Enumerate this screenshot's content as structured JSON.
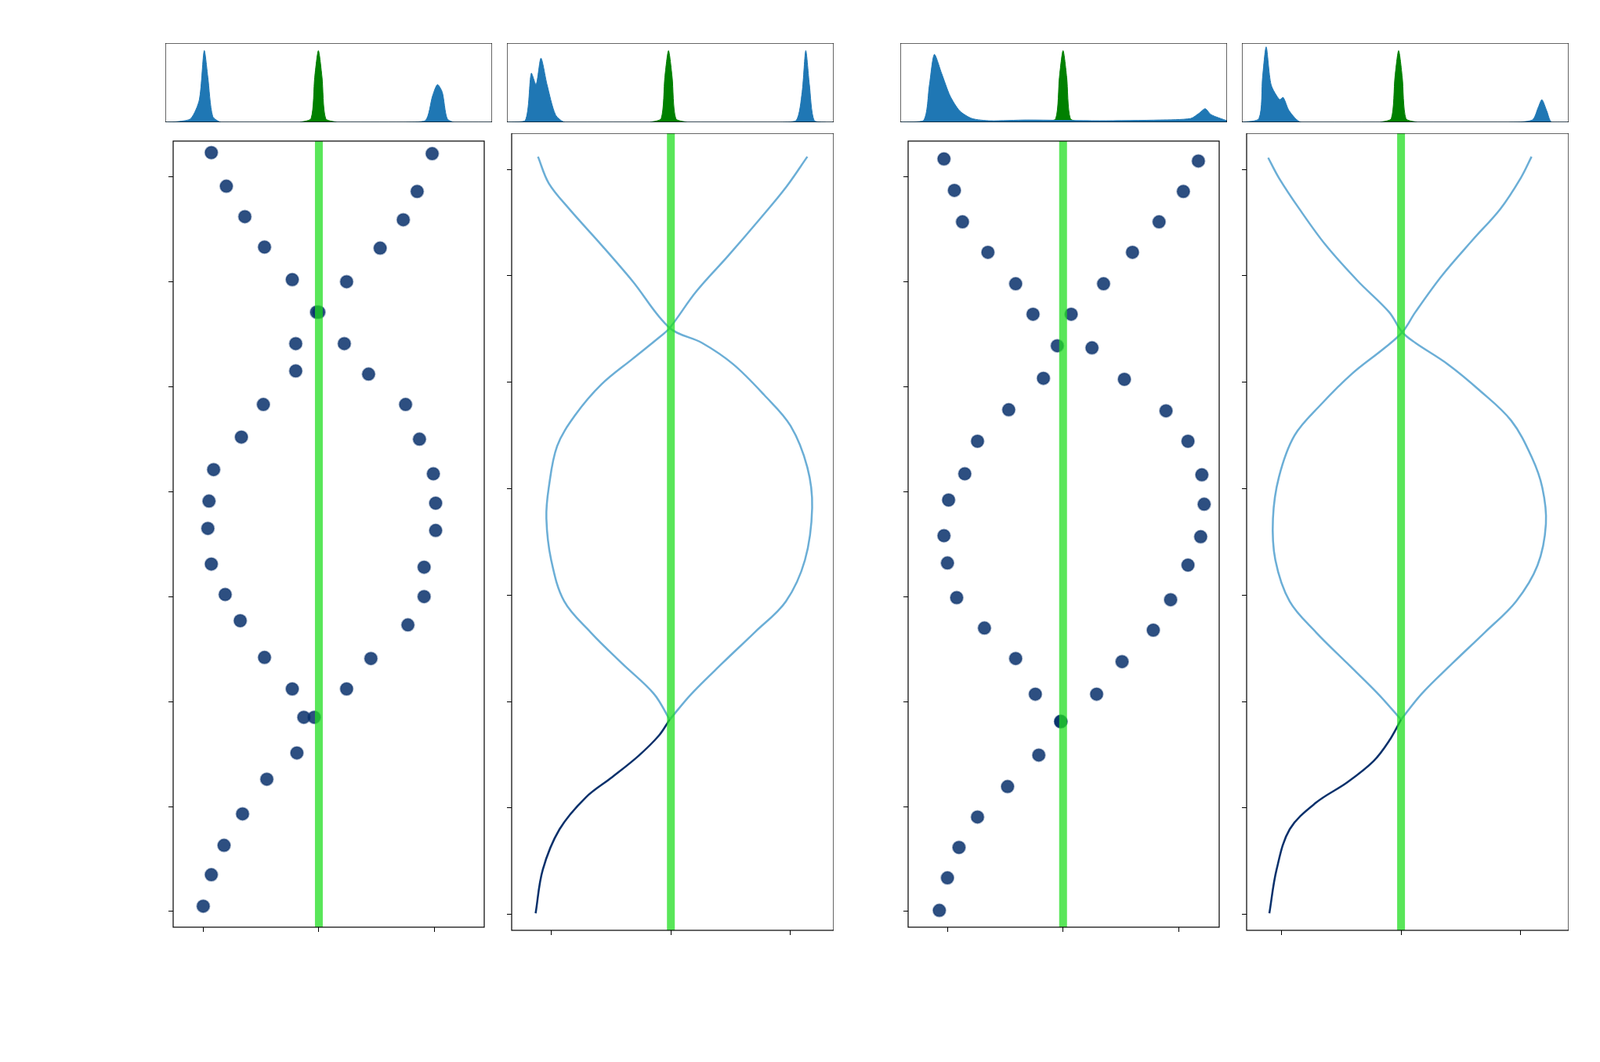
{
  "chart_data": [
    {
      "type": "area",
      "xlim": [
        -1.26,
        1.43
      ],
      "ylim": [
        0,
        1.05
      ],
      "tick_labels": false,
      "grid": false,
      "series": [
        {
          "color": "#1f77b4",
          "x": [
            -1.26,
            -1.15,
            -1.05,
            -0.98,
            -0.94,
            -0.91,
            -0.87,
            -0.8,
            -0.5,
            0.7,
            0.88,
            0.94,
            0.98,
            1.02,
            1.06,
            1.12,
            1.43
          ],
          "values": [
            0,
            0.01,
            0.05,
            0.3,
            0.95,
            0.6,
            0.08,
            0,
            0,
            0,
            0.02,
            0.35,
            0.5,
            0.4,
            0.05,
            0,
            0
          ]
        },
        {
          "color": "#008000",
          "x": [
            -0.15,
            -0.06,
            -0.03,
            0,
            0.03,
            0.06,
            0.15
          ],
          "values": [
            0,
            0.05,
            0.6,
            0.95,
            0.6,
            0.05,
            0
          ]
        }
      ]
    },
    {
      "type": "scatter",
      "xlim": [
        -1.26,
        1.43
      ],
      "xticks": [
        -1,
        0,
        1
      ],
      "ylim": [
        -0.15,
        7.34
      ],
      "yticks": [
        0,
        1,
        2,
        3,
        4,
        5,
        6,
        7
      ],
      "tick_labels": false,
      "grid": false,
      "series": [
        {
          "type": "line",
          "color": "#22dd22",
          "line_style": "solid",
          "x": [
            0,
            0
          ],
          "values": [
            -0.15,
            7.34
          ]
        },
        {
          "type": "scatter",
          "color": "#08306b",
          "marker": "circle",
          "x": [
            -0.93,
            -0.8,
            -0.64,
            -0.47,
            -0.23,
            -0.02,
            0.22,
            -0.2,
            -0.48,
            -0.67,
            -0.91,
            -0.95,
            -0.96,
            -0.93,
            -0.81,
            -0.68,
            -0.47,
            -0.23,
            -0.13,
            -0.19,
            -0.45,
            -0.66,
            -0.82,
            -0.93,
            -1.0
          ],
          "values": [
            7.23,
            6.91,
            6.62,
            6.33,
            6.02,
            5.71,
            5.41,
            5.15,
            4.83,
            4.52,
            4.21,
            3.91,
            3.65,
            3.31,
            3.02,
            2.77,
            2.42,
            2.12,
            1.85,
            1.51,
            1.26,
            0.93,
            0.63,
            0.35,
            0.05
          ]
        },
        {
          "type": "scatter",
          "color": "#08306b",
          "marker": "circle",
          "x": [
            0.98,
            0.85,
            0.73,
            0.53,
            0.24,
            0.0,
            -0.2,
            0.43,
            0.75,
            0.87,
            0.99,
            1.01,
            1.01,
            0.91,
            0.91,
            0.77,
            0.45,
            0.24,
            -0.04
          ],
          "values": [
            7.22,
            6.86,
            6.59,
            6.32,
            6.0,
            5.71,
            5.41,
            5.12,
            4.83,
            4.5,
            4.17,
            3.89,
            3.63,
            3.28,
            3.0,
            2.73,
            2.41,
            2.12,
            1.85
          ]
        }
      ]
    },
    {
      "type": "area",
      "xlim": [
        -1.33,
        1.36
      ],
      "ylim": [
        0,
        1.05
      ],
      "tick_labels": false,
      "grid": false,
      "series": [
        {
          "color": "#1f77b4",
          "x": [
            -1.33,
            -1.18,
            -1.13,
            -1.09,
            -1.05,
            -1.0,
            -0.93,
            -0.85,
            0.9,
            1.05,
            1.1,
            1.13,
            1.16,
            1.2,
            1.3,
            1.36
          ],
          "values": [
            0,
            0.02,
            0.65,
            0.5,
            0.85,
            0.5,
            0.1,
            0,
            0,
            0.02,
            0.4,
            0.95,
            0.5,
            0.02,
            0,
            0
          ]
        },
        {
          "color": "#008000",
          "x": [
            -0.15,
            -0.06,
            -0.03,
            0,
            0.03,
            0.06,
            0.15
          ],
          "values": [
            0,
            0.05,
            0.6,
            0.95,
            0.6,
            0.05,
            0
          ]
        }
      ]
    },
    {
      "type": "scatter",
      "xlim": [
        -1.33,
        1.36
      ],
      "xticks": [
        -1,
        0,
        1
      ],
      "ylim": [
        -0.15,
        7.34
      ],
      "yticks": [
        0,
        1,
        2,
        3,
        4,
        5,
        6,
        7
      ],
      "tick_labels": false,
      "grid": false,
      "series": [
        {
          "type": "line",
          "color": "#22dd22",
          "line_style": "solid",
          "x": [
            0,
            0
          ],
          "values": [
            -0.15,
            7.34
          ]
        },
        {
          "type": "line",
          "color": "#08306b",
          "line_style": "solid",
          "x": [
            -1.13,
            -1.07,
            -0.93,
            -0.71,
            -0.49,
            -0.27,
            -0.1,
            -0.01
          ],
          "values": [
            0.01,
            0.42,
            0.8,
            1.1,
            1.29,
            1.49,
            1.68,
            1.83
          ]
        },
        {
          "type": "line",
          "color": "#6baed6",
          "line_style": "solid",
          "x": [
            -0.01,
            -0.14,
            -0.41,
            -0.67,
            -0.89,
            -1.0,
            -1.04,
            -1.02,
            -0.95,
            -0.8,
            -0.58,
            -0.32,
            -0.1,
            -0.01,
            0.21,
            0.48,
            0.74,
            0.96,
            1.14
          ],
          "values": [
            1.83,
            2.07,
            2.36,
            2.65,
            2.94,
            3.33,
            3.72,
            4.01,
            4.4,
            4.69,
            4.98,
            5.22,
            5.42,
            5.51,
            5.85,
            6.19,
            6.53,
            6.83,
            7.12
          ]
        },
        {
          "type": "line",
          "color": "#6baed6",
          "line_style": "solid",
          "x": [
            -0.01,
            0.17,
            0.43,
            0.7,
            0.96,
            1.12,
            1.18,
            1.14,
            1.0,
            0.78,
            0.52,
            0.26,
            -0.01,
            -0.32,
            -0.58,
            -0.85,
            -1.02,
            -1.11
          ],
          "values": [
            1.83,
            2.07,
            2.36,
            2.65,
            2.94,
            3.33,
            3.82,
            4.2,
            4.59,
            4.88,
            5.17,
            5.37,
            5.51,
            5.95,
            6.29,
            6.63,
            6.87,
            7.12
          ]
        }
      ]
    },
    {
      "type": "area",
      "xlim": [
        -1.34,
        1.35
      ],
      "ylim": [
        0,
        1.05
      ],
      "tick_labels": false,
      "grid": false,
      "series": [
        {
          "color": "#1f77b4",
          "x": [
            -1.34,
            -1.15,
            -1.1,
            -1.06,
            -1.0,
            -0.93,
            -0.85,
            -0.75,
            -0.6,
            -0.3,
            0.3,
            0.8,
            1.05,
            1.12,
            1.17,
            1.22,
            1.35
          ],
          "values": [
            0,
            0.02,
            0.5,
            0.9,
            0.65,
            0.35,
            0.15,
            0.05,
            0.02,
            0.03,
            0.02,
            0.03,
            0.05,
            0.12,
            0.18,
            0.1,
            0.02
          ]
        },
        {
          "color": "#008000",
          "x": [
            -0.15,
            -0.06,
            -0.03,
            0,
            0.03,
            0.06,
            0.15
          ],
          "values": [
            0,
            0.05,
            0.6,
            0.95,
            0.6,
            0.05,
            0
          ]
        }
      ]
    },
    {
      "type": "scatter",
      "xlim": [
        -1.34,
        1.35
      ],
      "xticks": [
        -1,
        0,
        1
      ],
      "ylim": [
        -0.15,
        7.34
      ],
      "yticks": [
        0,
        1,
        2,
        3,
        4,
        5,
        6,
        7
      ],
      "tick_labels": false,
      "grid": false,
      "series": [
        {
          "type": "line",
          "color": "#22dd22",
          "line_style": "solid",
          "x": [
            0,
            0
          ],
          "values": [
            -0.15,
            7.34
          ]
        },
        {
          "type": "scatter",
          "color": "#08306b",
          "marker": "circle",
          "x": [
            -1.03,
            -0.94,
            -0.87,
            -0.65,
            -0.41,
            -0.26,
            -0.05,
            -0.17,
            -0.47,
            -0.74,
            -0.85,
            -0.99,
            -1.03,
            -1.0,
            -0.92,
            -0.68,
            -0.41,
            -0.24,
            -0.02,
            -0.21,
            -0.48,
            -0.74,
            -0.9,
            -1.0,
            -1.07
          ],
          "values": [
            7.17,
            6.87,
            6.57,
            6.28,
            5.98,
            5.69,
            5.39,
            5.08,
            4.78,
            4.48,
            4.17,
            3.92,
            3.58,
            3.32,
            2.99,
            2.7,
            2.41,
            2.07,
            1.81,
            1.49,
            1.19,
            0.9,
            0.61,
            0.32,
            0.01
          ]
        },
        {
          "type": "scatter",
          "color": "#08306b",
          "marker": "circle",
          "x": [
            1.17,
            1.04,
            0.83,
            0.6,
            0.35,
            0.07,
            0.25,
            0.53,
            0.89,
            1.08,
            1.2,
            1.22,
            1.19,
            1.08,
            0.93,
            0.78,
            0.51,
            0.29,
            -0.02
          ],
          "values": [
            7.15,
            6.86,
            6.57,
            6.28,
            5.98,
            5.69,
            5.37,
            5.07,
            4.77,
            4.48,
            4.16,
            3.88,
            3.57,
            3.3,
            2.97,
            2.68,
            2.38,
            2.07,
            1.81
          ]
        }
      ]
    },
    {
      "type": "area",
      "xlim": [
        -1.29,
        1.4
      ],
      "ylim": [
        0,
        1.05
      ],
      "tick_labels": false,
      "grid": false,
      "series": [
        {
          "color": "#1f77b4",
          "x": [
            -1.29,
            -1.15,
            -1.12,
            -1.09,
            -1.05,
            -0.98,
            -0.95,
            -0.9,
            -0.8,
            0.9,
            1.1,
            1.15,
            1.18,
            1.22,
            1.26,
            1.4
          ],
          "values": [
            0,
            0.05,
            0.6,
            1.0,
            0.5,
            0.3,
            0.33,
            0.15,
            0,
            0,
            0.03,
            0.2,
            0.3,
            0.15,
            0,
            0
          ]
        },
        {
          "color": "#008000",
          "x": [
            -0.15,
            -0.06,
            -0.03,
            0,
            0.03,
            0.06,
            0.15
          ],
          "values": [
            0,
            0.05,
            0.6,
            0.95,
            0.6,
            0.05,
            0
          ]
        }
      ]
    },
    {
      "type": "scatter",
      "xlim": [
        -1.29,
        1.4
      ],
      "xticks": [
        -1,
        0,
        1
      ],
      "ylim": [
        -0.15,
        7.34
      ],
      "yticks": [
        0,
        1,
        2,
        3,
        4,
        5,
        6,
        7
      ],
      "tick_labels": false,
      "grid": false,
      "series": [
        {
          "type": "line",
          "color": "#22dd22",
          "line_style": "solid",
          "x": [
            0,
            0
          ],
          "values": [
            -0.15,
            7.34
          ]
        },
        {
          "type": "line",
          "color": "#08306b",
          "line_style": "solid",
          "x": [
            -1.1,
            -1.04,
            -0.93,
            -0.71,
            -0.45,
            -0.23,
            -0.1,
            0
          ],
          "values": [
            0.01,
            0.42,
            0.8,
            1.05,
            1.24,
            1.44,
            1.63,
            1.83
          ]
        },
        {
          "type": "line",
          "color": "#6baed6",
          "line_style": "solid",
          "x": [
            0,
            0.17,
            0.43,
            0.7,
            0.96,
            1.14,
            1.21,
            1.18,
            1.09,
            0.92,
            0.65,
            0.39,
            0.12,
            0.01,
            -0.1,
            -0.36,
            -0.63,
            -0.85,
            -1.02,
            -1.11
          ],
          "values": [
            1.83,
            2.07,
            2.36,
            2.65,
            2.94,
            3.28,
            3.67,
            4.01,
            4.3,
            4.64,
            4.93,
            5.17,
            5.37,
            5.47,
            5.66,
            5.95,
            6.29,
            6.63,
            6.92,
            7.11
          ]
        },
        {
          "type": "line",
          "color": "#6baed6",
          "line_style": "solid",
          "x": [
            0,
            -0.19,
            -0.45,
            -0.71,
            -0.93,
            -1.05,
            -1.07,
            -1.02,
            -0.89,
            -0.67,
            -0.41,
            -0.14,
            0.01,
            0.12,
            0.34,
            0.6,
            0.83,
            1.0,
            1.09
          ],
          "values": [
            1.83,
            2.07,
            2.36,
            2.65,
            2.94,
            3.33,
            3.72,
            4.11,
            4.5,
            4.79,
            5.08,
            5.32,
            5.47,
            5.66,
            6.0,
            6.34,
            6.63,
            6.92,
            7.12
          ]
        }
      ]
    }
  ]
}
